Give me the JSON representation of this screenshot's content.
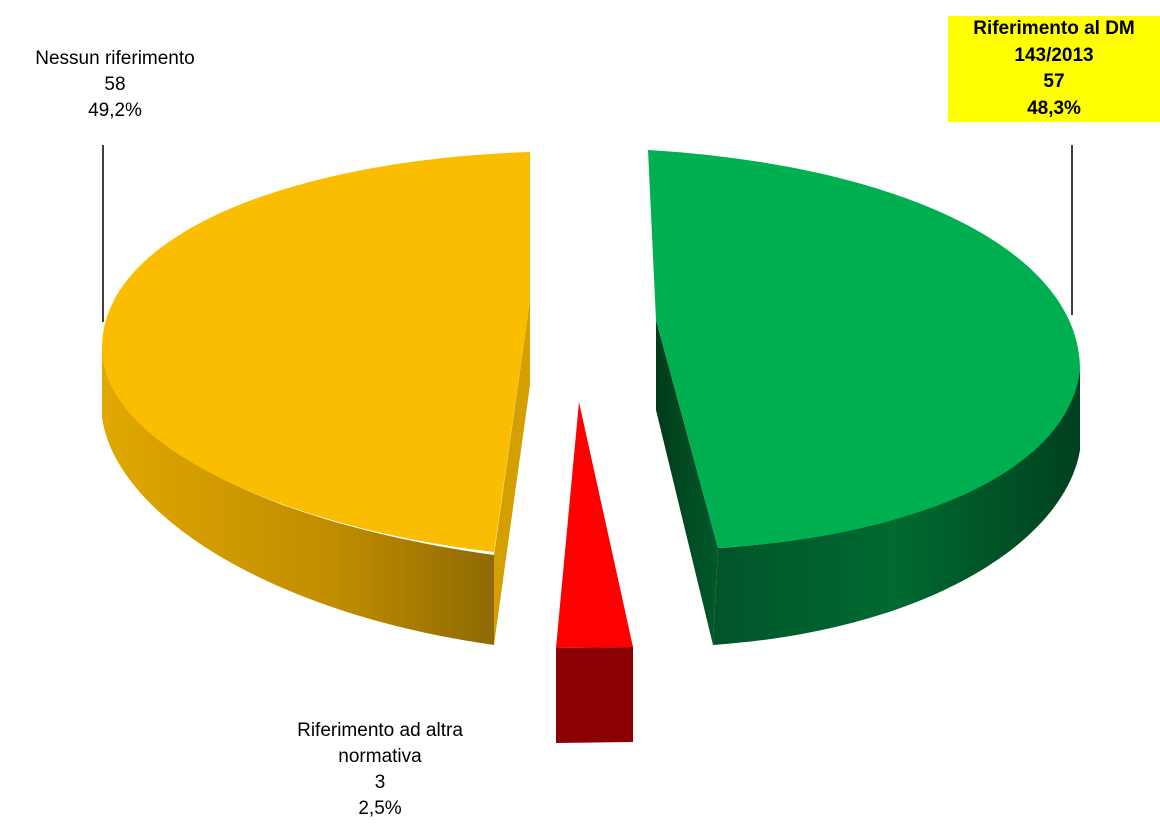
{
  "chart_data": {
    "type": "pie",
    "style": "3d-exploded",
    "slices": [
      {
        "label_lines": [
          "Riferimento al DM",
          "143/2013"
        ],
        "value": 57,
        "percent": "48,3%",
        "color": "#00b050",
        "side_color": "#00602a",
        "label_bg": "#ffff00",
        "label_bold": true
      },
      {
        "label_lines": [
          "Riferimento ad altra",
          "normativa"
        ],
        "value": 3,
        "percent": "2,5%",
        "color": "#ff0000",
        "side_color": "#8b0000",
        "label_bg": null,
        "label_bold": false
      },
      {
        "label_lines": [
          "Nessun riferimento"
        ],
        "value": 58,
        "percent": "49,2%",
        "color": "#fabd00",
        "side_color": "#b38200",
        "label_bg": null,
        "label_bold": false
      }
    ]
  }
}
